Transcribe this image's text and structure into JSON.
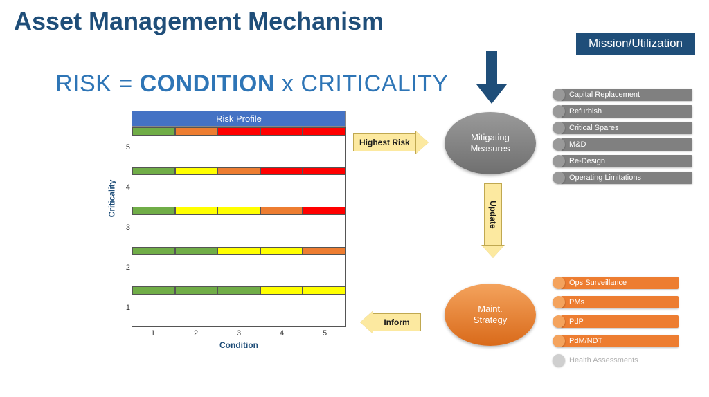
{
  "title": "Asset Management Mechanism",
  "formula": {
    "lhs": "RISK",
    "eq": "=",
    "mid": "CONDITION",
    "op": "x",
    "rhs": "CRITICALITY"
  },
  "risk_matrix": {
    "title": "Risk Profile",
    "y_label": "Criticality",
    "x_label": "Condition",
    "y_ticks": [
      "5",
      "4",
      "3",
      "2",
      "1"
    ],
    "x_ticks": [
      "1",
      "2",
      "3",
      "4",
      "5"
    ],
    "colors": {
      "green": "#70ad47",
      "yellow": "#ffff00",
      "orange": "#ed7d31",
      "red": "#ff0000"
    },
    "grid_border": "#555555",
    "title_bg": "#4472c4",
    "cells": [
      [
        "green",
        "orange",
        "red",
        "red",
        "red"
      ],
      [
        "green",
        "yellow",
        "orange",
        "red",
        "red"
      ],
      [
        "green",
        "yellow",
        "yellow",
        "orange",
        "red"
      ],
      [
        "green",
        "green",
        "yellow",
        "yellow",
        "orange"
      ],
      [
        "green",
        "green",
        "green",
        "yellow",
        "yellow"
      ]
    ]
  },
  "arrows": {
    "highest_risk": "Highest Risk",
    "inform": "Inform",
    "update": "Update",
    "arrow_fill": "#fce9a0",
    "arrow_border": "#c0a850"
  },
  "mission": {
    "label": "Mission/Utilization",
    "bg": "#1f4e79",
    "fg": "#ffffff"
  },
  "blue_arrow": {
    "fill": "#1f4e79"
  },
  "mitigating": {
    "label": "Mitigating\nMeasures",
    "bg": "#808080",
    "fg": "#ffffff",
    "item_bg": "#808080",
    "bullet_bg": "#999999",
    "items": [
      "Capital Replacement",
      "Refurbish",
      "Critical Spares",
      "M&D",
      "Re-Design",
      "Operating Limitations"
    ]
  },
  "maint": {
    "label": "Maint.\nStrategy",
    "bg": "#ed7d31",
    "fg": "#ffffff",
    "item_bg": "#ed7d31",
    "bullet_bg": "#f4a35d",
    "items": [
      {
        "text": "Ops Surveillance",
        "muted": false
      },
      {
        "text": "PMs",
        "muted": false
      },
      {
        "text": "PdP",
        "muted": false
      },
      {
        "text": "PdM/NDT",
        "muted": false
      },
      {
        "text": "Health Assessments",
        "muted": true
      }
    ]
  }
}
